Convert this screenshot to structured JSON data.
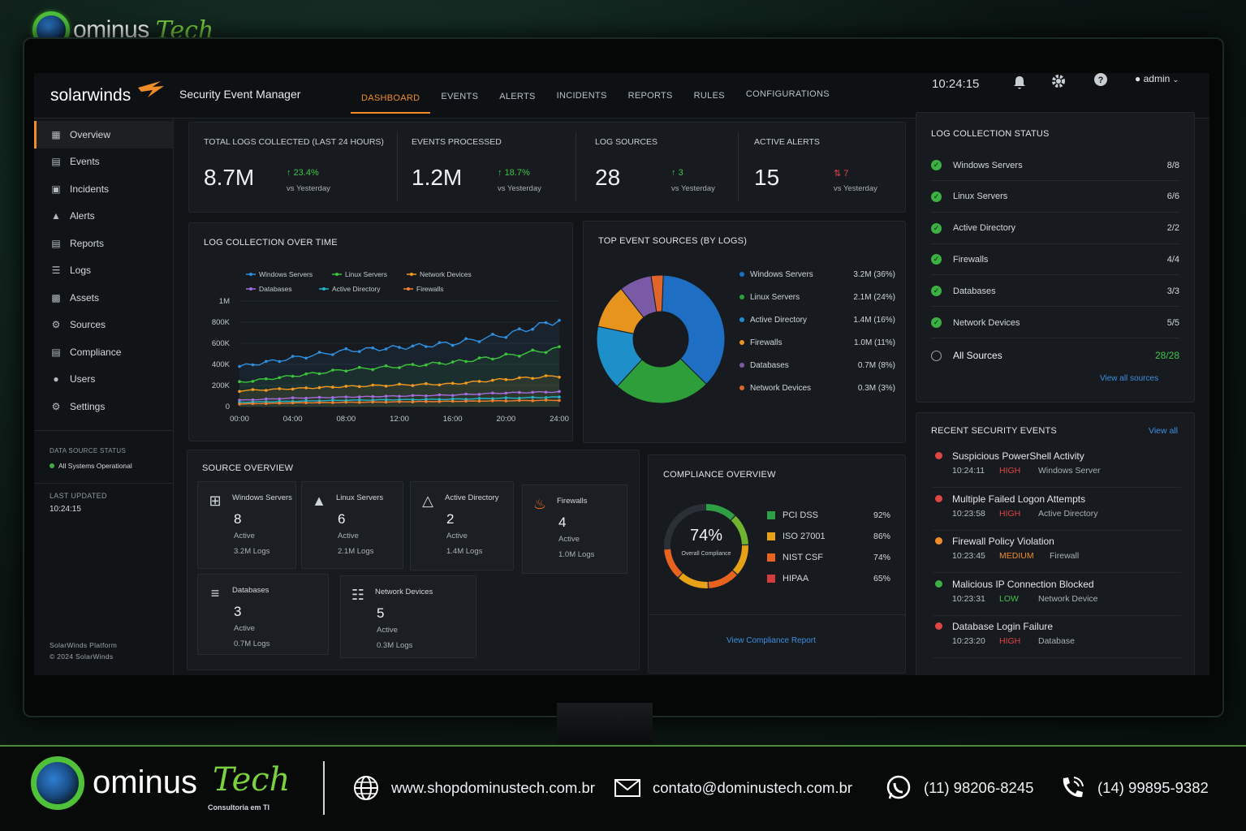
{
  "brand": {
    "name": "ominus",
    "tech": "Tech",
    "subtitle": "Consultoria em TI"
  },
  "app": {
    "logo_text": "solarwinds",
    "title": "Security Event Manager",
    "clock": "10:24:15",
    "user": "admin"
  },
  "nav": [
    {
      "label": "DASHBOARD",
      "active": true
    },
    {
      "label": "EVENTS"
    },
    {
      "label": "ALERTS"
    },
    {
      "label": "INCIDENTS"
    },
    {
      "label": "REPORTS"
    },
    {
      "label": "RULES"
    },
    {
      "label": "CONFIGURATIONS"
    }
  ],
  "sidebar": {
    "items": [
      {
        "label": "Overview",
        "icon": "dashboard-icon",
        "active": true
      },
      {
        "label": "Events",
        "icon": "events-icon"
      },
      {
        "label": "Incidents",
        "icon": "briefcase-icon"
      },
      {
        "label": "Alerts",
        "icon": "warning-icon"
      },
      {
        "label": "Reports",
        "icon": "report-icon"
      },
      {
        "label": "Logs",
        "icon": "list-icon"
      },
      {
        "label": "Assets",
        "icon": "assets-icon"
      },
      {
        "label": "Sources",
        "icon": "sources-icon"
      },
      {
        "label": "Compliance",
        "icon": "compliance-icon"
      },
      {
        "label": "Users",
        "icon": "users-icon"
      },
      {
        "label": "Settings",
        "icon": "gear-icon"
      }
    ],
    "status_label": "DATA SOURCE STATUS",
    "status_value": "All Systems Operational",
    "updated_label": "LAST UPDATED",
    "updated_value": "10:24:15",
    "platform": "SolarWinds Platform",
    "copyright": "© 2024 SolarWinds"
  },
  "kpis": [
    {
      "label": "TOTAL LOGS COLLECTED (LAST 24 HOURS)",
      "value": "8.7M",
      "delta": "23.4%",
      "direction": "up",
      "vs": "vs Yesterday"
    },
    {
      "label": "EVENTS PROCESSED",
      "value": "1.2M",
      "delta": "18.7%",
      "direction": "up",
      "vs": "vs Yesterday"
    },
    {
      "label": "LOG SOURCES",
      "value": "28",
      "delta": "3",
      "direction": "up",
      "vs": "vs Yesterday"
    },
    {
      "label": "ACTIVE ALERTS",
      "value": "15",
      "delta": "7",
      "direction": "up-red",
      "vs": "vs Yesterday"
    }
  ],
  "log_status": {
    "title": "LOG COLLECTION STATUS",
    "rows": [
      {
        "name": "Windows Servers",
        "count": "8/8"
      },
      {
        "name": "Linux Servers",
        "count": "6/6"
      },
      {
        "name": "Active Directory",
        "count": "2/2"
      },
      {
        "name": "Firewalls",
        "count": "4/4"
      },
      {
        "name": "Databases",
        "count": "3/3"
      },
      {
        "name": "Network Devices",
        "count": "5/5"
      }
    ],
    "total_label": "All Sources",
    "total_count": "28/28",
    "link": "View all sources"
  },
  "line_chart_title": "LOG COLLECTION OVER TIME",
  "pie_chart_title": "TOP EVENT SOURCES (BY LOGS)",
  "chart_data": [
    {
      "type": "line",
      "title": "LOG COLLECTION OVER TIME",
      "x": [
        "00:00",
        "04:00",
        "08:00",
        "12:00",
        "16:00",
        "20:00",
        "24:00"
      ],
      "y_ticks": [
        "0",
        "200K",
        "400K",
        "600K",
        "800K",
        "1M"
      ],
      "ylim": [
        0,
        1000000
      ],
      "series": [
        {
          "name": "Windows Servers",
          "color": "#2f8fe0",
          "values": [
            380000,
            460000,
            530000,
            560000,
            600000,
            680000,
            820000
          ]
        },
        {
          "name": "Linux Servers",
          "color": "#3cc43c",
          "values": [
            230000,
            290000,
            350000,
            380000,
            420000,
            480000,
            550000
          ]
        },
        {
          "name": "Network Devices",
          "color": "#f39a1e",
          "values": [
            150000,
            170000,
            190000,
            205000,
            215000,
            260000,
            290000
          ]
        },
        {
          "name": "Databases",
          "color": "#a56ce0",
          "values": [
            60000,
            80000,
            90000,
            100000,
            110000,
            130000,
            140000
          ]
        },
        {
          "name": "Active Directory",
          "color": "#22b5c8",
          "values": [
            40000,
            50000,
            60000,
            65000,
            70000,
            80000,
            90000
          ]
        },
        {
          "name": "Firewalls",
          "color": "#f08030",
          "values": [
            25000,
            35000,
            40000,
            45000,
            50000,
            55000,
            60000
          ]
        }
      ],
      "legend": "top"
    },
    {
      "type": "pie",
      "title": "TOP EVENT SOURCES (BY LOGS)",
      "slices": [
        {
          "name": "Windows Servers",
          "value": 36,
          "label": "3.2M (36%)",
          "color": "#1e6fc4"
        },
        {
          "name": "Linux Servers",
          "value": 24,
          "label": "2.1M (24%)",
          "color": "#2e9e3a"
        },
        {
          "name": "Active Directory",
          "value": 16,
          "label": "1.4M (16%)",
          "color": "#1f8fc9"
        },
        {
          "name": "Firewalls",
          "value": 11,
          "label": "1.0M (11%)",
          "color": "#e6941e"
        },
        {
          "name": "Databases",
          "value": 8,
          "label": "0.7M (8%)",
          "color": "#7a5aa6"
        },
        {
          "name": "Network Devices",
          "value": 3,
          "label": "0.3M (3%)",
          "color": "#e0652a"
        }
      ]
    }
  ],
  "source_overview": {
    "title": "SOURCE OVERVIEW",
    "cards": [
      {
        "name": "Windows Servers",
        "count": "8",
        "status": "Active",
        "logs": "3.2M Logs",
        "icon": "windows-icon"
      },
      {
        "name": "Linux Servers",
        "count": "6",
        "status": "Active",
        "logs": "2.1M Logs",
        "icon": "linux-icon"
      },
      {
        "name": "Active Directory",
        "count": "2",
        "status": "Active",
        "logs": "1.4M Logs",
        "icon": "directory-icon"
      },
      {
        "name": "Firewalls",
        "count": "4",
        "status": "Active",
        "logs": "1.0M Logs",
        "icon": "fire-icon"
      },
      {
        "name": "Databases",
        "count": "3",
        "status": "Active",
        "logs": "0.7M Logs",
        "icon": "database-icon"
      },
      {
        "name": "Network Devices",
        "count": "5",
        "status": "Active",
        "logs": "0.3M Logs",
        "icon": "network-icon"
      }
    ]
  },
  "compliance": {
    "title": "COMPLIANCE OVERVIEW",
    "overall": "74%",
    "overall_label": "Overall Compliance",
    "overall_fraction": 0.74,
    "rows": [
      {
        "name": "PCI DSS",
        "pct": "92%",
        "color": "#2ea043"
      },
      {
        "name": "ISO 27001",
        "pct": "86%",
        "color": "#e6a117"
      },
      {
        "name": "NIST CSF",
        "pct": "74%",
        "color": "#e8641e"
      },
      {
        "name": "HIPAA",
        "pct": "65%",
        "color": "#d23c3c"
      }
    ],
    "link": "View Compliance Report"
  },
  "recent_events": {
    "title": "RECENT SECURITY EVENTS",
    "link": "View all",
    "items": [
      {
        "title": "Suspicious PowerShell Activity",
        "time": "10:24:11",
        "severity": "HIGH",
        "source": "Windows Server",
        "color": "#e04545"
      },
      {
        "title": "Multiple Failed Logon Attempts",
        "time": "10:23:58",
        "severity": "HIGH",
        "source": "Active Directory",
        "color": "#e04545"
      },
      {
        "title": "Firewall Policy Violation",
        "time": "10:23:45",
        "severity": "MEDIUM",
        "source": "Firewall",
        "color": "#f08c28"
      },
      {
        "title": "Malicious IP Connection Blocked",
        "time": "10:23:31",
        "severity": "LOW",
        "source": "Network Device",
        "color": "#3cb043"
      },
      {
        "title": "Database Login Failure",
        "time": "10:23:20",
        "severity": "HIGH",
        "source": "Database",
        "color": "#e04545"
      }
    ]
  },
  "footer": {
    "website": "www.shopdominustech.com.br",
    "email": "contato@dominustech.com.br",
    "whatsapp": "(11) 98206-8245",
    "phone": "(14) 99895-9382"
  }
}
